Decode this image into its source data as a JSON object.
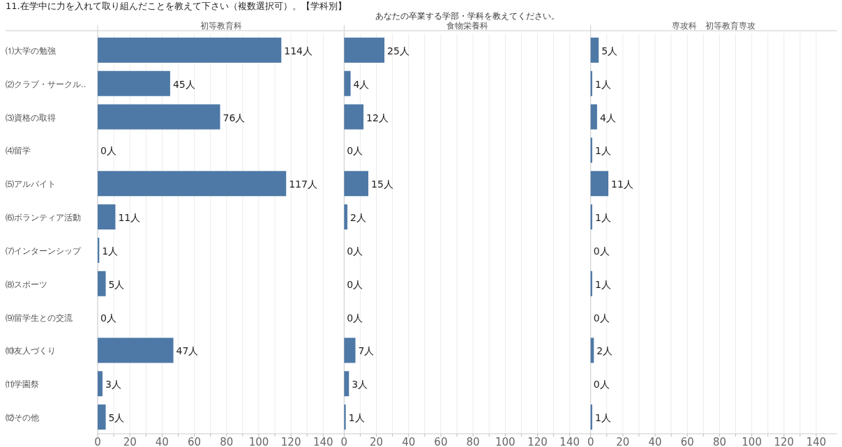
{
  "chart_data": [
    {
      "type": "bar",
      "orientation": "horizontal",
      "title": "初等教育科",
      "annotations": [
        "11.在学中に力を入れて取り組んだことを教えて下さい（複数選択可）。【学科別】",
        "あなたの卒業する学部・学科を教えてください。"
      ],
      "categories": [
        "⑴大学の勉強",
        "⑵クラブ・サークル..",
        "⑶資格の取得",
        "⑷留学",
        "⑸アルバイト",
        "⑹ボランティア活動",
        "⑺インターンシップ",
        "⑻スポーツ",
        "⑼留学生との交流",
        "⑽友人づくり",
        "⑾学園祭",
        "⑿その他"
      ],
      "values": [
        114,
        45,
        76,
        0,
        117,
        11,
        1,
        5,
        0,
        47,
        3,
        5
      ],
      "value_labels": [
        "114人",
        "45人",
        "76人",
        "0人",
        "117人",
        "11人",
        "1人",
        "5人",
        "0人",
        "47人",
        "3人",
        "5人"
      ],
      "color": "#4e79a7",
      "xlim": [
        0,
        140
      ],
      "xticks": [
        0,
        {
          "value": 10,
          "label": null
        },
        20,
        {
          "value": 30,
          "label": null
        },
        40,
        {
          "value": 50,
          "label": null
        },
        60,
        {
          "value": 70,
          "label": null
        },
        80,
        {
          "value": 90,
          "label": null
        },
        100,
        {
          "value": 110,
          "label": null
        },
        120,
        {
          "value": 130,
          "label": null
        },
        140
      ],
      "grid": "x"
    },
    {
      "type": "bar",
      "orientation": "horizontal",
      "title": "食物栄養科",
      "categories": [
        null,
        null,
        null,
        null,
        null,
        null,
        null,
        null,
        null,
        null,
        null,
        null
      ],
      "values": [
        25,
        4,
        12,
        0,
        15,
        2,
        0,
        0,
        0,
        7,
        3,
        1
      ],
      "value_labels": [
        "25人",
        "4人",
        "12人",
        "0人",
        "15人",
        "2人",
        "0人",
        "0人",
        "0人",
        "7人",
        "3人",
        "1人"
      ],
      "color": "#4e79a7",
      "xlim": [
        0,
        140
      ],
      "xticks": [
        0,
        {
          "value": 10,
          "label": null
        },
        20,
        {
          "value": 30,
          "label": null
        },
        40,
        {
          "value": 50,
          "label": null
        },
        60,
        {
          "value": 70,
          "label": null
        },
        80,
        {
          "value": 90,
          "label": null
        },
        100,
        {
          "value": 110,
          "label": null
        },
        120,
        {
          "value": 130,
          "label": null
        },
        140
      ],
      "grid": "x",
      "tick_labels": "x"
    },
    {
      "type": "bar",
      "orientation": "horizontal",
      "title": "専攻科　初等教育専攻",
      "categories": [
        null,
        null,
        null,
        null,
        null,
        null,
        null,
        null,
        null,
        null,
        null,
        null
      ],
      "values": [
        5,
        1,
        4,
        1,
        11,
        1,
        0,
        1,
        0,
        2,
        0,
        1
      ],
      "value_labels": [
        "5人",
        "1人",
        "4人",
        "1人",
        "11人",
        "1人",
        "0人",
        "1人",
        "0人",
        "2人",
        "0人",
        "1人"
      ],
      "color": "#4e79a7",
      "xlim": [
        0,
        140
      ],
      "xticks": [
        0,
        {
          "value": 10,
          "label": null
        },
        20,
        {
          "value": 30,
          "label": null
        },
        40,
        {
          "value": 50,
          "label": null
        },
        60,
        {
          "value": 70,
          "label": null
        },
        80,
        {
          "value": 90,
          "label": null
        },
        100,
        {
          "value": 110,
          "label": null
        },
        120,
        {
          "value": 130,
          "label": null
        },
        140
      ],
      "grid": "x",
      "tick_labels": "x"
    }
  ]
}
